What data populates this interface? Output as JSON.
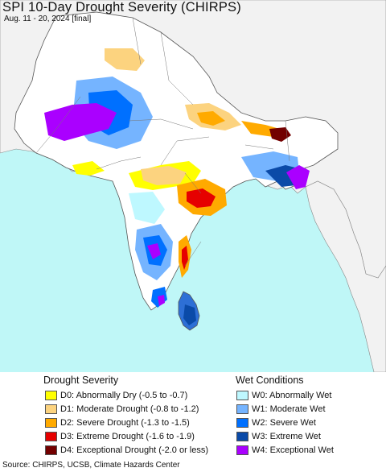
{
  "title": "SPI 10-Day Drought Severity (CHIRPS)",
  "subtitle": "Aug. 11 - 20, 2024 [final]",
  "map": {
    "region": "South Asia",
    "colors": {
      "ocean": "#bff7f7",
      "land_outside": "#f2f2f2",
      "land_normal": "#ffffff",
      "border": "#666666"
    }
  },
  "legend": {
    "drought_heading": "Drought Severity",
    "wet_heading": "Wet Conditions",
    "drought_items": [
      {
        "label": "D0: Abnormally Dry (-0.5 to -0.7)",
        "color": "#ffff00"
      },
      {
        "label": "D1: Moderate Drought (-0.8 to -1.2)",
        "color": "#fcd37f"
      },
      {
        "label": "D2: Severe Drought (-1.3 to -1.5)",
        "color": "#ffaa00"
      },
      {
        "label": "D3: Extreme Drought (-1.6 to -1.9)",
        "color": "#e60000"
      },
      {
        "label": "D4: Exceptional Drought (-2.0 or less)",
        "color": "#730000"
      }
    ],
    "wet_items": [
      {
        "label": "W0: Abnormally Wet",
        "color": "#bef8ff"
      },
      {
        "label": "W1: Moderate Wet",
        "color": "#75b4ff"
      },
      {
        "label": "W2: Severe Wet",
        "color": "#0070ff"
      },
      {
        "label": "W3: Extreme Wet",
        "color": "#0a4aa8"
      },
      {
        "label": "W4: Exceptional Wet",
        "color": "#aa00ff"
      }
    ]
  },
  "source": "Source: CHIRPS, UCSB, Climate Hazards Center"
}
